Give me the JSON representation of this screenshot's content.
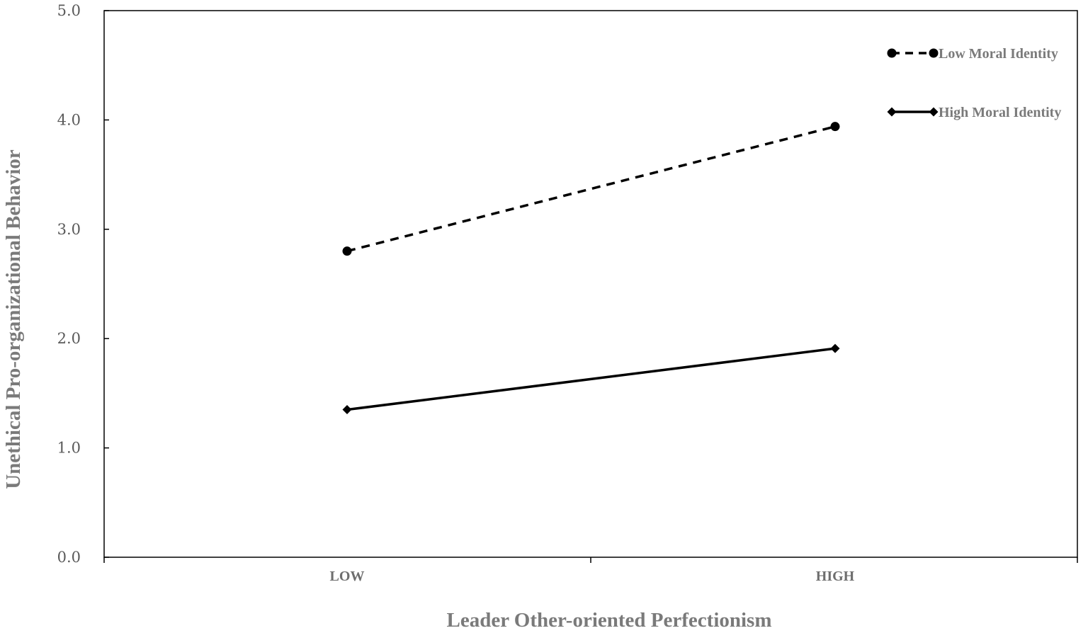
{
  "chart_data": {
    "type": "line",
    "title": "",
    "xlabel": "Leader Other-oriented Perfectionism",
    "ylabel": "Unethical Pro-organizational Behavior",
    "categories": [
      "LOW",
      "HIGH"
    ],
    "ylim": [
      0.0,
      5.0
    ],
    "yticks": [
      "0.0",
      "1.0",
      "2.0",
      "3.0",
      "4.0",
      "5.0"
    ],
    "grid": false,
    "legend_position": "top-right",
    "series": [
      {
        "name": "Low Moral Identity",
        "values": [
          2.8,
          3.94
        ],
        "line_style": "dashed",
        "marker": "circle",
        "color": "#000000"
      },
      {
        "name": "High Moral Identity",
        "values": [
          1.35,
          1.91
        ],
        "line_style": "solid",
        "marker": "diamond",
        "color": "#000000"
      }
    ]
  }
}
